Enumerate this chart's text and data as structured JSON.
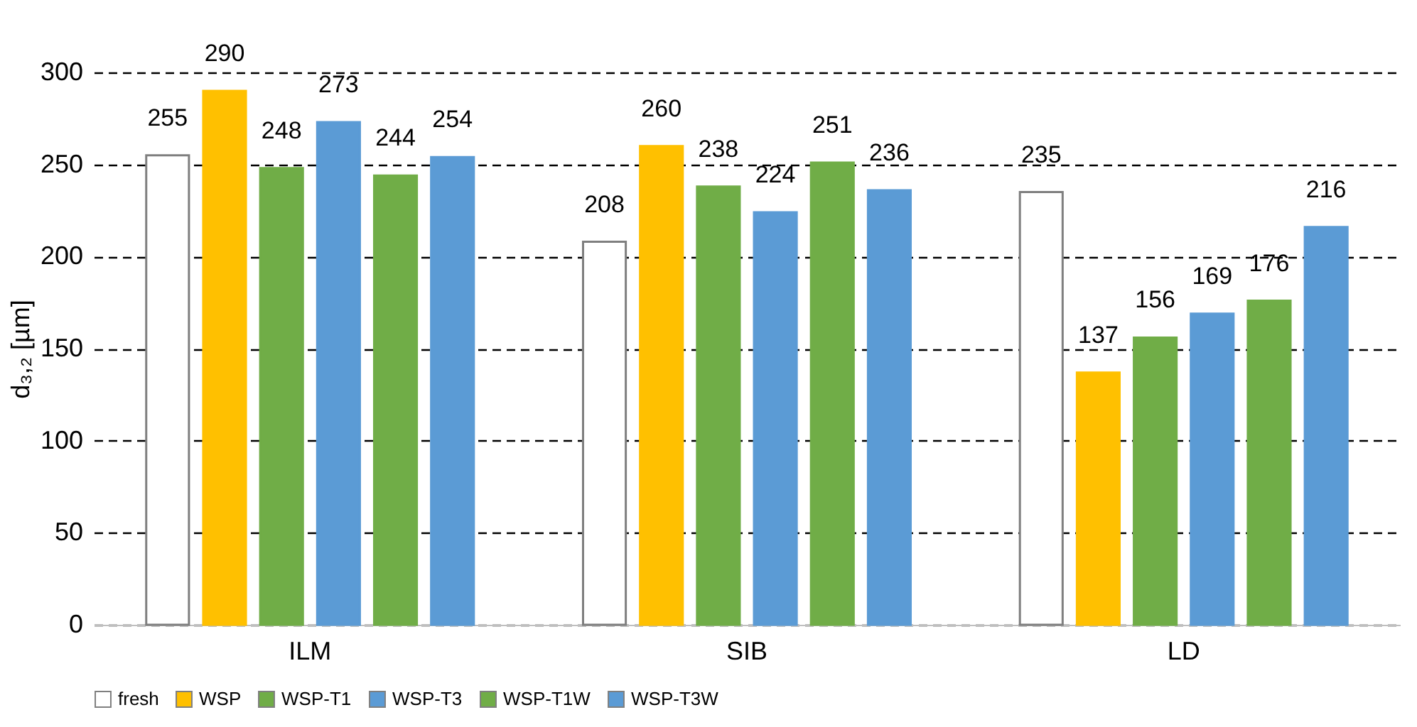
{
  "chart_data": {
    "type": "bar",
    "ylabel": "d₃,₂ [µm]",
    "categories": [
      "ILM",
      "SIB",
      "LD"
    ],
    "series": [
      {
        "name": "fresh",
        "color": "#ffffff",
        "values": [
          255,
          208,
          235
        ]
      },
      {
        "name": "WSP",
        "color": "#ffc000",
        "values": [
          290,
          260,
          137
        ]
      },
      {
        "name": "WSP-T1",
        "color": "#70ad47",
        "values": [
          248,
          238,
          156
        ]
      },
      {
        "name": "WSP-T3",
        "color": "#5b9bd5",
        "values": [
          273,
          224,
          169
        ]
      },
      {
        "name": "WSP-T1W",
        "color": "#70ad47",
        "values": [
          244,
          251,
          176
        ]
      },
      {
        "name": "WSP-T3W",
        "color": "#5b9bd5",
        "values": [
          254,
          236,
          216
        ]
      }
    ],
    "ylim": [
      0,
      300
    ],
    "yticks": [
      0,
      50,
      100,
      150,
      200,
      250,
      300
    ],
    "grid": "y",
    "legend": "bottom",
    "data_labels": true
  }
}
